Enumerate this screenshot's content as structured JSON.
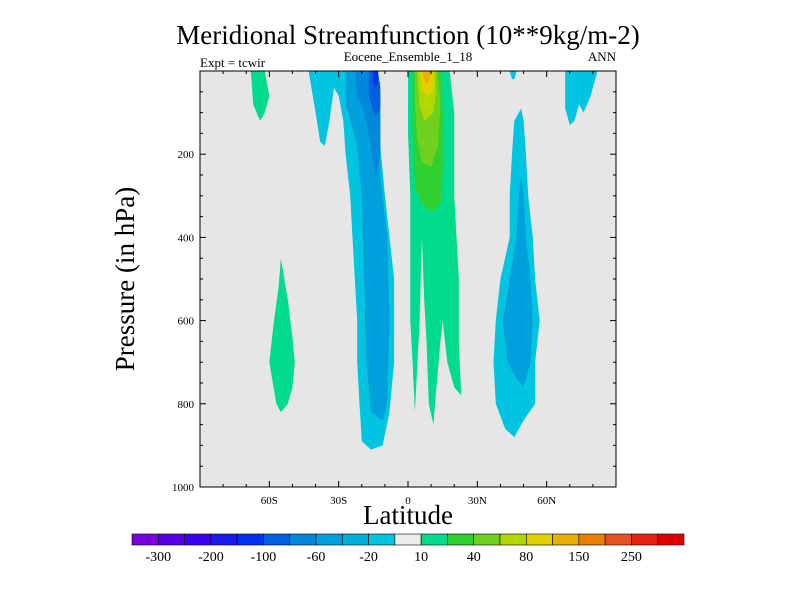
{
  "chart_data": {
    "type": "contour",
    "title": "Meridional Streamfunction (10**9kg/m-2)",
    "subtitle_left": "Expt = tcwir",
    "subtitle_center": "Eocene_Ensemble_1_18",
    "subtitle_right": "ANN",
    "xlabel": "Latitude",
    "ylabel": "Pressure (in hPa)",
    "xlim": [
      -90,
      90
    ],
    "ylim": [
      0,
      1000
    ],
    "y_reversed": true,
    "x_ticks": [
      {
        "value": -60,
        "label": "60S"
      },
      {
        "value": -30,
        "label": "30S"
      },
      {
        "value": 0,
        "label": "0"
      },
      {
        "value": 30,
        "label": "30N"
      },
      {
        "value": 60,
        "label": "60N"
      }
    ],
    "y_ticks": [
      {
        "value": 200,
        "label": "200"
      },
      {
        "value": 400,
        "label": "400"
      },
      {
        "value": 600,
        "label": "600"
      },
      {
        "value": 800,
        "label": "800"
      },
      {
        "value": 1000,
        "label": "1000"
      }
    ],
    "background_color": "#e6e6e6",
    "contour_levels": [
      -300,
      -250,
      -200,
      -150,
      -100,
      -80,
      -60,
      -40,
      -20,
      -10,
      10,
      20,
      40,
      60,
      80,
      100,
      150,
      200,
      250,
      300
    ],
    "colorbar_labels": [
      {
        "level_index": 1,
        "label": "-300"
      },
      {
        "level_index": 3,
        "label": "-200"
      },
      {
        "level_index": 5,
        "label": "-100"
      },
      {
        "level_index": 7,
        "label": "-60"
      },
      {
        "level_index": 9,
        "label": "-20"
      },
      {
        "level_index": 11,
        "label": "10"
      },
      {
        "level_index": 13,
        "label": "40"
      },
      {
        "level_index": 15,
        "label": "80"
      },
      {
        "level_index": 17,
        "label": "150"
      },
      {
        "level_index": 19,
        "label": "250"
      }
    ],
    "colorbar_colors": [
      "#7a00e0",
      "#5a00e8",
      "#3a00f0",
      "#1a1aee",
      "#0030f0",
      "#0060e0",
      "#0088dd",
      "#00a0dc",
      "#00b0d8",
      "#00c4e0",
      "#ececec",
      "#00dc8c",
      "#30d030",
      "#70d020",
      "#b0d800",
      "#e0d000",
      "#e8b000",
      "#e88000",
      "#e85020",
      "#e82010",
      "#e00000"
    ],
    "filled_regions": [
      {
        "level": "-20 to -10",
        "color": "#00c4e0",
        "points": [
          [
            -43,
            0
          ],
          [
            -36,
            0
          ],
          [
            -30,
            0
          ],
          [
            -20,
            0
          ],
          [
            -14,
            5
          ],
          [
            -12,
            30
          ],
          [
            -14,
            120
          ],
          [
            -12,
            180
          ],
          [
            -10,
            300
          ],
          [
            -6,
            500
          ],
          [
            -6,
            700
          ],
          [
            -8,
            820
          ],
          [
            -11,
            900
          ],
          [
            -16,
            910
          ],
          [
            -20,
            890
          ],
          [
            -21,
            800
          ],
          [
            -22,
            700
          ],
          [
            -22,
            600
          ],
          [
            -23,
            500
          ],
          [
            -25,
            300
          ],
          [
            -27,
            200
          ],
          [
            -28,
            120
          ],
          [
            -30,
            60
          ],
          [
            -32,
            40
          ],
          [
            -34,
            120
          ],
          [
            -36,
            180
          ],
          [
            -38,
            170
          ],
          [
            -40,
            100
          ]
        ]
      },
      {
        "level": "-40 to -20",
        "color": "#00a0dc",
        "points": [
          [
            -27,
            0
          ],
          [
            -22,
            0
          ],
          [
            -14,
            0
          ],
          [
            -12,
            100
          ],
          [
            -12,
            250
          ],
          [
            -9,
            400
          ],
          [
            -8,
            600
          ],
          [
            -9,
            800
          ],
          [
            -11,
            840
          ],
          [
            -16,
            820
          ],
          [
            -18,
            700
          ],
          [
            -19,
            500
          ],
          [
            -20,
            300
          ],
          [
            -22,
            180
          ],
          [
            -25,
            120
          ],
          [
            -27,
            80
          ]
        ]
      },
      {
        "level": "-60 to -40",
        "color": "#0088dd",
        "points": [
          [
            -23,
            0
          ],
          [
            -15,
            0
          ],
          [
            -12,
            50
          ],
          [
            -12,
            200
          ],
          [
            -14,
            260
          ],
          [
            -16,
            180
          ],
          [
            -19,
            100
          ],
          [
            -22,
            60
          ]
        ]
      },
      {
        "level": "-80 to -60",
        "color": "#0060e0",
        "points": [
          [
            -17,
            0
          ],
          [
            -13,
            0
          ],
          [
            -12,
            40
          ],
          [
            -12,
            90
          ],
          [
            -14,
            110
          ],
          [
            -17,
            60
          ]
        ]
      },
      {
        "level": "-100 to -80",
        "color": "#0030f0",
        "points": [
          [
            -15,
            0
          ],
          [
            -13,
            0
          ],
          [
            -13,
            30
          ],
          [
            -14,
            40
          ],
          [
            -15,
            25
          ]
        ]
      },
      {
        "level": "10 to 20",
        "color": "#00dc8c",
        "points": [
          [
            0,
            0
          ],
          [
            14,
            0
          ],
          [
            18,
            0
          ],
          [
            20,
            100
          ],
          [
            20,
            300
          ],
          [
            22,
            500
          ],
          [
            22,
            650
          ],
          [
            23,
            780
          ],
          [
            20,
            760
          ],
          [
            17,
            700
          ],
          [
            15,
            600
          ],
          [
            14,
            650
          ],
          [
            12,
            780
          ],
          [
            11,
            850
          ],
          [
            9,
            800
          ],
          [
            8,
            650
          ],
          [
            7,
            550
          ],
          [
            6,
            400
          ],
          [
            5,
            600
          ],
          [
            3,
            820
          ],
          [
            2,
            700
          ],
          [
            1,
            600
          ],
          [
            1,
            300
          ],
          [
            0,
            150
          ]
        ]
      },
      {
        "level": "20 to 40",
        "color": "#30d030",
        "points": [
          [
            2,
            0
          ],
          [
            14,
            0
          ],
          [
            15,
            100
          ],
          [
            15,
            250
          ],
          [
            14,
            320
          ],
          [
            10,
            340
          ],
          [
            6,
            320
          ],
          [
            3,
            280
          ],
          [
            2,
            150
          ]
        ]
      },
      {
        "level": "40 to 60",
        "color": "#70d020",
        "points": [
          [
            3,
            0
          ],
          [
            13,
            0
          ],
          [
            14,
            80
          ],
          [
            13,
            180
          ],
          [
            10,
            230
          ],
          [
            6,
            220
          ],
          [
            4,
            160
          ],
          [
            3,
            80
          ]
        ]
      },
      {
        "level": "60 to 80",
        "color": "#b0d800",
        "points": [
          [
            4,
            0
          ],
          [
            12,
            0
          ],
          [
            12,
            60
          ],
          [
            11,
            100
          ],
          [
            7,
            120
          ],
          [
            5,
            80
          ]
        ]
      },
      {
        "level": "80 to 100",
        "color": "#e0d000",
        "points": [
          [
            5,
            0
          ],
          [
            11,
            0
          ],
          [
            11,
            40
          ],
          [
            9,
            60
          ],
          [
            6,
            50
          ]
        ]
      },
      {
        "level": "100 to 150",
        "color": "#e8b000",
        "points": [
          [
            6,
            0
          ],
          [
            10,
            0
          ],
          [
            9,
            25
          ],
          [
            8,
            30
          ],
          [
            7,
            20
          ]
        ]
      },
      {
        "level": "-20 to -10 (NH)",
        "color": "#00c4e0",
        "points": [
          [
            44,
            400
          ],
          [
            44,
            300
          ],
          [
            45,
            200
          ],
          [
            46,
            120
          ],
          [
            49,
            90
          ],
          [
            50,
            120
          ],
          [
            51,
            200
          ],
          [
            52,
            300
          ],
          [
            54,
            400
          ],
          [
            55,
            500
          ],
          [
            57,
            600
          ],
          [
            55,
            700
          ],
          [
            55,
            800
          ],
          [
            50,
            840
          ],
          [
            46,
            880
          ],
          [
            42,
            860
          ],
          [
            38,
            800
          ],
          [
            37,
            700
          ],
          [
            38,
            600
          ],
          [
            40,
            500
          ]
        ]
      },
      {
        "level": "-40 to -20 (NH)",
        "color": "#00a0dc",
        "points": [
          [
            44,
            500
          ],
          [
            47,
            400
          ],
          [
            48,
            300
          ],
          [
            49,
            250
          ],
          [
            50,
            300
          ],
          [
            51,
            400
          ],
          [
            53,
            500
          ],
          [
            54,
            600
          ],
          [
            53,
            700
          ],
          [
            50,
            760
          ],
          [
            47,
            740
          ],
          [
            43,
            700
          ],
          [
            41,
            600
          ]
        ]
      },
      {
        "level": "10 to 20 (SH)",
        "color": "#00dc8c",
        "points": [
          [
            -50,
            640
          ],
          [
            -52,
            550
          ],
          [
            -55,
            450
          ],
          [
            -56,
            520
          ],
          [
            -58,
            600
          ],
          [
            -60,
            700
          ],
          [
            -57,
            800
          ],
          [
            -55,
            820
          ],
          [
            -52,
            800
          ],
          [
            -50,
            760
          ],
          [
            -49,
            700
          ]
        ]
      },
      {
        "level": "10 to 20 (far SH)",
        "color": "#00dc8c",
        "points": [
          [
            -68,
            0
          ],
          [
            -62,
            0
          ],
          [
            -60,
            60
          ],
          [
            -62,
            100
          ],
          [
            -64,
            120
          ],
          [
            -67,
            80
          ]
        ]
      },
      {
        "level": "-20 to -10 (far NH)",
        "color": "#00c4e0",
        "points": [
          [
            68,
            0
          ],
          [
            82,
            0
          ],
          [
            79,
            60
          ],
          [
            76,
            100
          ],
          [
            74,
            80
          ],
          [
            72,
            120
          ],
          [
            70,
            130
          ],
          [
            68,
            90
          ]
        ]
      },
      {
        "level": "-20 to -10 (NH small)",
        "color": "#00c4e0",
        "points": [
          [
            44,
            0
          ],
          [
            47,
            0
          ],
          [
            46,
            20
          ],
          [
            45,
            20
          ]
        ]
      }
    ]
  }
}
